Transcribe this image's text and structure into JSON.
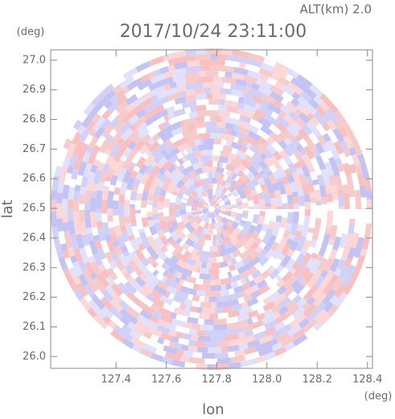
{
  "chart_data": {
    "type": "radar-ppi",
    "title": "2017/10/24 23:11:00",
    "subtitle": "ALT(km) 2.0",
    "x_label": "lon",
    "y_label": "lat",
    "x_unit": "(deg)",
    "y_unit": "(deg)",
    "xlim": [
      127.14,
      128.42
    ],
    "ylim": [
      25.96,
      27.035
    ],
    "xticks": [
      127.4,
      127.6,
      127.8,
      {
        "value": 128.0,
        "label": "128.0"
      },
      128.2,
      128.4
    ],
    "yticks": [
      {
        "value": 26.0,
        "label": "26.0"
      },
      26.1,
      26.2,
      26.3,
      26.4,
      26.5,
      26.6,
      26.7,
      26.8,
      26.9,
      {
        "value": 27.0,
        "label": "27.0"
      }
    ]
  }
}
